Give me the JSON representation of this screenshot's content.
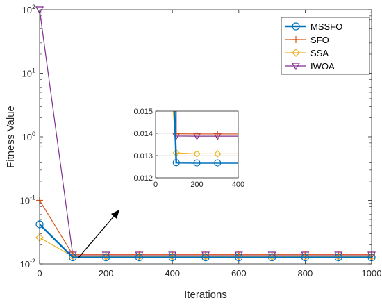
{
  "chart_data": {
    "type": "line",
    "title": "",
    "xlabel": "Iterations",
    "ylabel": "Fitness Value",
    "xlim": [
      0,
      1000
    ],
    "ylim": [
      0.01,
      100
    ],
    "yscale": "log",
    "xticks": [
      0,
      200,
      400,
      600,
      800,
      1000
    ],
    "xtick_labels": [
      "0",
      "200",
      "400",
      "600",
      "800",
      "1000"
    ],
    "yticks": [
      0.01,
      0.1,
      1,
      10,
      100
    ],
    "ytick_labels": [
      [
        "10",
        "-2"
      ],
      [
        "10",
        "-1"
      ],
      [
        "10",
        "0"
      ],
      [
        "10",
        "1"
      ],
      [
        "10",
        "2"
      ]
    ],
    "grid": false,
    "legend_position": "top-right",
    "x": [
      0,
      100,
      200,
      300,
      400,
      500,
      600,
      700,
      800,
      900,
      1000
    ],
    "series": [
      {
        "name": "MSSFO",
        "color": "#0072bd",
        "marker": "circle",
        "values": [
          0.042,
          0.01268,
          0.01267,
          0.01267,
          0.01267,
          0.01267,
          0.01267,
          0.01267,
          0.01267,
          0.01267,
          0.01267
        ]
      },
      {
        "name": "SFO",
        "color": "#d95319",
        "marker": "plus",
        "values": [
          0.1,
          0.01398,
          0.01397,
          0.01397,
          0.01397,
          0.01397,
          0.01397,
          0.01397,
          0.01397,
          0.01397,
          0.01397
        ]
      },
      {
        "name": "SSA",
        "color": "#edb120",
        "marker": "diamond",
        "values": [
          0.026,
          0.01312,
          0.01308,
          0.01308,
          0.01308,
          0.01308,
          0.01308,
          0.01308,
          0.01308,
          0.01308,
          0.01308
        ]
      },
      {
        "name": "IWOA",
        "color": "#7e2f8e",
        "marker": "triangle-down",
        "values": [
          100,
          0.01388,
          0.01387,
          0.01387,
          0.01387,
          0.01387,
          0.01387,
          0.01387,
          0.01387,
          0.01387,
          0.01387
        ]
      }
    ],
    "inset": {
      "xlim": [
        0,
        400
      ],
      "ylim": [
        0.012,
        0.015
      ],
      "xticks": [
        0,
        200,
        400
      ],
      "yticks": [
        0.012,
        0.013,
        0.014,
        0.015
      ],
      "ytick_labels": [
        "0.012",
        "0.013",
        "0.014",
        "0.015"
      ],
      "grid": true
    }
  }
}
